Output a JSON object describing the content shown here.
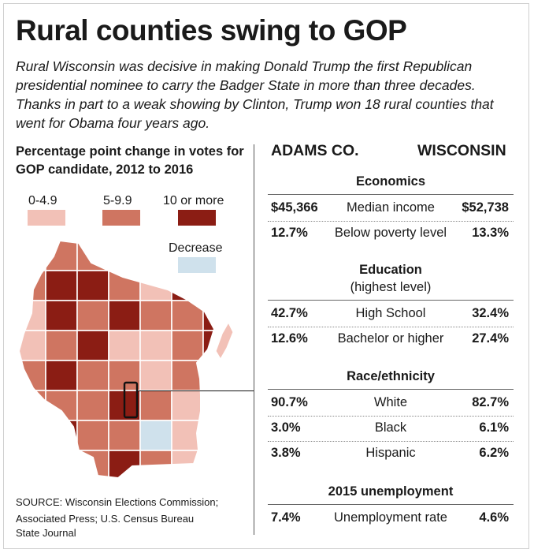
{
  "title": "Rural counties swing to GOP",
  "intro": "Rural Wisconsin was decisive in making Donald Trump the first Republican presidential nominee to carry the Badger State in more than three decades. Thanks in part to a weak showing by Clinton, Trump won 18 rural counties that went for Obama four years ago.",
  "map": {
    "title": "Percentage point change in votes for GOP candidate, 2012 to 2016",
    "legend": [
      {
        "label": "0-4.9",
        "color": "#f2c1b7"
      },
      {
        "label": "5-9.9",
        "color": "#cf7561"
      },
      {
        "label": "10 or more",
        "color": "#8b1d14"
      },
      {
        "label": "Decrease",
        "color": "#cfe1ec"
      }
    ]
  },
  "columns": {
    "left": "ADAMS CO.",
    "right": "WISCONSIN"
  },
  "sections": [
    {
      "heading": "Economics",
      "rows": [
        {
          "adams": "$45,366",
          "label": "Median income",
          "wisconsin": "$52,738"
        },
        {
          "adams": "12.7%",
          "label": "Below poverty level",
          "wisconsin": "13.3%"
        }
      ]
    },
    {
      "heading": "Education",
      "subheading": "(highest level)",
      "rows": [
        {
          "adams": "42.7%",
          "label": "High School",
          "wisconsin": "32.4%"
        },
        {
          "adams": "12.6%",
          "label": "Bachelor or higher",
          "wisconsin": "27.4%"
        }
      ]
    },
    {
      "heading": "Race/ethnicity",
      "rows": [
        {
          "adams": "90.7%",
          "label": "White",
          "wisconsin": "82.7%"
        },
        {
          "adams": "3.0%",
          "label": "Black",
          "wisconsin": "6.1%"
        },
        {
          "adams": "3.8%",
          "label": "Hispanic",
          "wisconsin": "6.2%"
        }
      ]
    },
    {
      "heading": "2015 unemployment",
      "rows": [
        {
          "adams": "7.4%",
          "label": "Unemployment rate",
          "wisconsin": "4.6%"
        }
      ]
    }
  ],
  "source": "SOURCE: Wisconsin Elections Commission; Associated Press; U.S. Census Bureau",
  "credit": "State Journal"
}
